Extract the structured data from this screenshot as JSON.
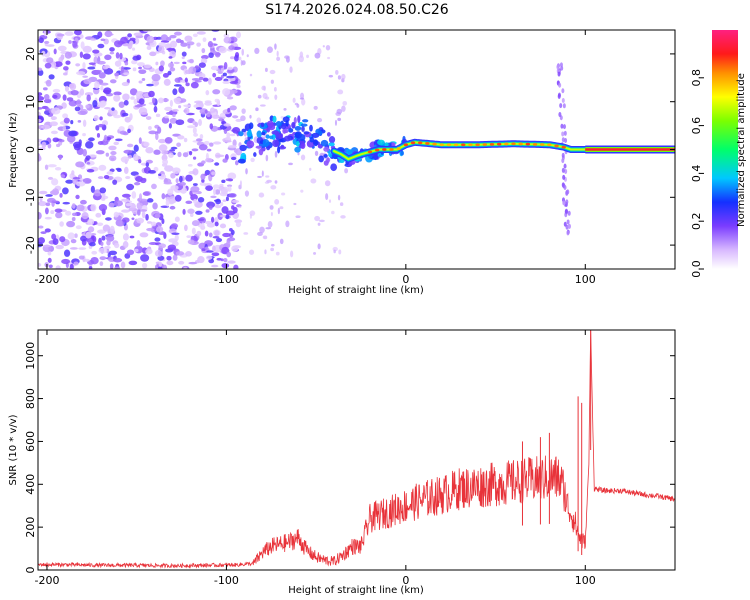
{
  "title": "S174.2026.024.08.50.C26",
  "chart_data": [
    {
      "type": "heatmap",
      "name": "spectrogram",
      "xlabel": "Height of straight line (km)",
      "ylabel": "Frequency (Hz)",
      "xlim": [
        -205,
        150
      ],
      "ylim": [
        -25,
        25
      ],
      "xticks": [
        -200,
        -100,
        0,
        100
      ],
      "yticks": [
        -20,
        -10,
        0,
        10,
        20
      ],
      "noise_region_x": [
        -205,
        -93
      ],
      "ridge_region_x": [
        -93,
        150
      ],
      "colorbar": {
        "label": "Normalized spectral amplitude",
        "range": [
          0.0,
          1.0
        ],
        "ticks": [
          0.0,
          0.2,
          0.4,
          0.6,
          0.8
        ]
      },
      "ridge_centerline": {
        "x": [
          -93,
          -85,
          -75,
          -65,
          -58,
          -50,
          -42,
          -36,
          -32,
          -25,
          -15,
          -5,
          0,
          5,
          20,
          40,
          60,
          80,
          88,
          92,
          95,
          100,
          150
        ],
        "y": [
          0,
          2,
          3,
          4,
          3,
          2,
          0,
          -1,
          -2,
          -1,
          0,
          0,
          1,
          1.5,
          1,
          1,
          1.2,
          1,
          0.5,
          0,
          0,
          0,
          0
        ]
      }
    },
    {
      "type": "line",
      "name": "snr",
      "xlabel": "Height of straight line (km)",
      "ylabel": "SNR (10 * v/v)",
      "xlim": [
        -205,
        150
      ],
      "ylim": [
        0,
        1120
      ],
      "xticks": [
        -200,
        -100,
        0,
        100
      ],
      "yticks": [
        0,
        200,
        400,
        600,
        800,
        1000
      ],
      "color": "#e8333a",
      "series": [
        {
          "name": "SNR",
          "x": [
            -205,
            -190,
            -170,
            -150,
            -130,
            -110,
            -95,
            -85,
            -80,
            -75,
            -70,
            -65,
            -60,
            -55,
            -50,
            -45,
            -40,
            -35,
            -30,
            -25,
            -20,
            -10,
            0,
            10,
            20,
            30,
            40,
            50,
            60,
            70,
            80,
            85,
            88,
            90,
            93,
            95,
            97,
            100,
            102,
            103,
            105,
            110,
            120,
            130,
            140,
            150
          ],
          "y": [
            25,
            25,
            22,
            22,
            20,
            22,
            24,
            30,
            80,
            110,
            120,
            130,
            150,
            90,
            60,
            45,
            40,
            70,
            110,
            110,
            240,
            270,
            300,
            330,
            350,
            380,
            390,
            400,
            410,
            420,
            430,
            430,
            380,
            300,
            250,
            200,
            150,
            120,
            500,
            1120,
            380,
            370,
            370,
            355,
            345,
            330
          ]
        }
      ],
      "spikes": [
        {
          "x": 96,
          "y": 810
        },
        {
          "x": 98,
          "y": 780
        },
        {
          "x": 103,
          "y": 1120
        },
        {
          "x": 80,
          "y": 640
        },
        {
          "x": 75,
          "y": 620
        },
        {
          "x": 65,
          "y": 600
        }
      ]
    }
  ]
}
